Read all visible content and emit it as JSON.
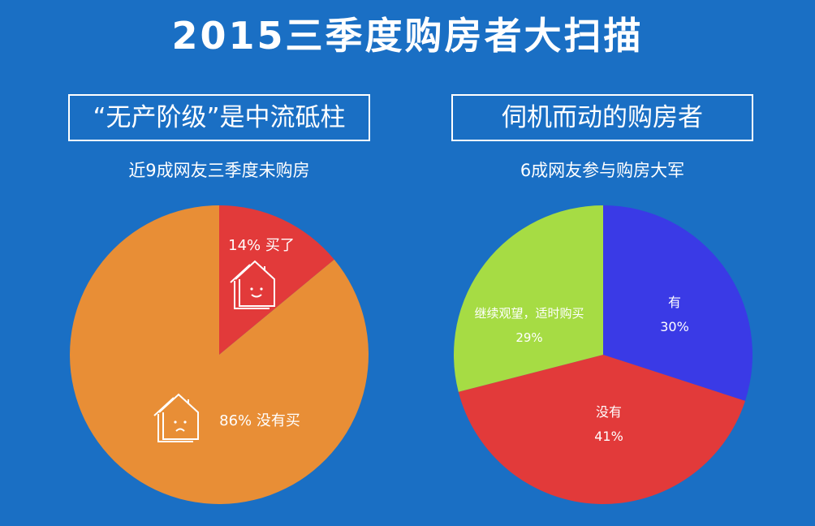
{
  "title": "2015三季度购房者大扫描",
  "colors": {
    "background": "#1a6fc4",
    "red": "#e23a3a",
    "orange": "#e88e36",
    "blue": "#3a3ae6",
    "green": "#a6dc44"
  },
  "left_panel": {
    "box_title": "“无产阶级”是中流砥柱",
    "subtitle": "近9成网友三季度未购房"
  },
  "right_panel": {
    "box_title": "伺机而动的购房者",
    "subtitle": "6成网友参与购房大军"
  },
  "chart_data": [
    {
      "type": "pie",
      "title": "",
      "slices": [
        {
          "value": 14,
          "pct_label": "14%",
          "text": "买了",
          "color": "#e23a3a",
          "icon": "happy-house-icon"
        },
        {
          "value": 86,
          "pct_label": "86%",
          "text": "没有买",
          "color": "#e88e36",
          "icon": "sad-house-icon"
        }
      ],
      "start_angle_deg": 0,
      "legend": "none"
    },
    {
      "type": "pie",
      "title": "",
      "slices": [
        {
          "value": 30,
          "pct_label": "30%",
          "text": "有",
          "color": "#3a3ae6"
        },
        {
          "value": 41,
          "pct_label": "41%",
          "text": "没有",
          "color": "#e23a3a"
        },
        {
          "value": 29,
          "pct_label": "29%",
          "text": "继续观望，适时购买",
          "color": "#a6dc44"
        }
      ],
      "start_angle_deg": 0,
      "legend": "none"
    }
  ]
}
